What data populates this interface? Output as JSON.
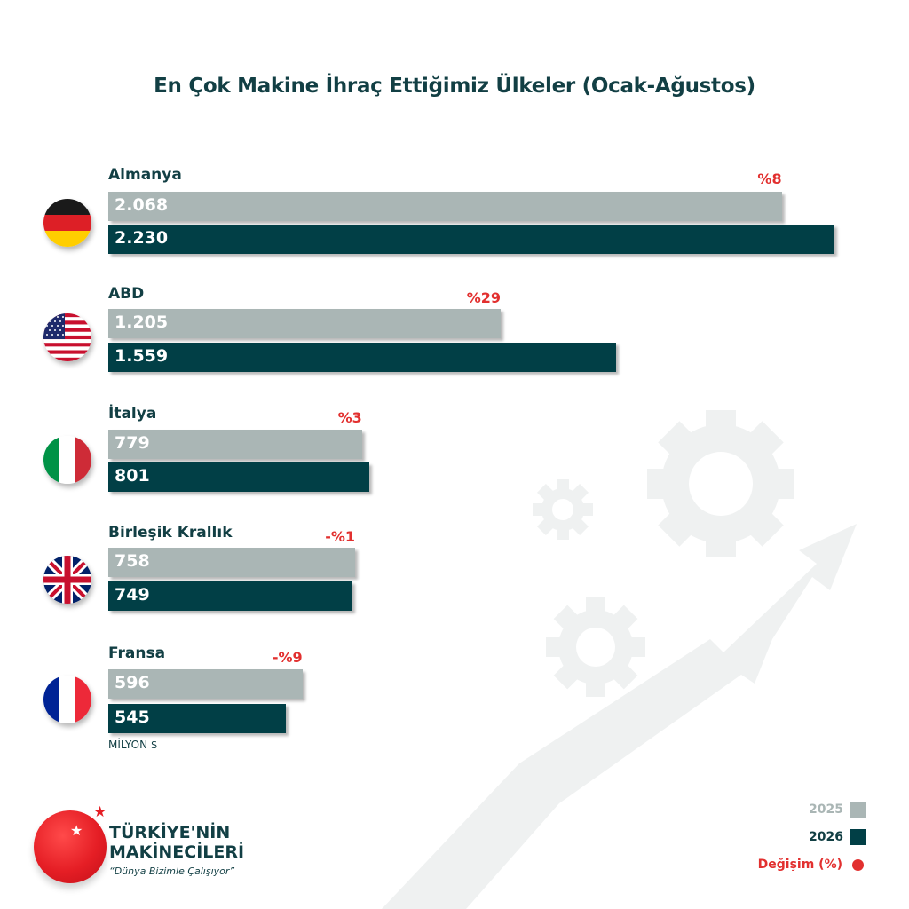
{
  "title": "En Çok Makine İhraç Ettiğimiz Ülkeler (Ocak-Ağustos)",
  "unit": "MİLYON $",
  "colors": {
    "year_2025": "#aab6b5",
    "year_2026": "#013f46",
    "change": "#e2302f",
    "text": "#123f44"
  },
  "chart_data": {
    "type": "bar",
    "orientation": "horizontal",
    "categories": [
      "Almanya",
      "ABD",
      "İtalya",
      "Birleşik Krallık",
      "Fransa"
    ],
    "series": [
      {
        "name": "2025",
        "values": [
          2068,
          1205,
          779,
          758,
          596
        ],
        "labels": [
          "2.068",
          "1.205",
          "779",
          "758",
          "596"
        ]
      },
      {
        "name": "2026",
        "values": [
          2230,
          1559,
          801,
          749,
          545
        ],
        "labels": [
          "2.230",
          "1.559",
          "801",
          "749",
          "545"
        ]
      }
    ],
    "change_labels": [
      "%8",
      "%29",
      "%3",
      "-%1",
      "-%9"
    ],
    "flags": [
      "germany-flag",
      "usa-flag",
      "italy-flag",
      "uk-flag",
      "france-flag"
    ],
    "xlim": [
      0,
      2230
    ],
    "grid": false,
    "legend_position": "bottom-right"
  },
  "legend": {
    "items": [
      {
        "label": "2025",
        "color": "#aab6b5"
      },
      {
        "label": "2026",
        "color": "#013f46"
      }
    ],
    "change_label": "Değişim (%)"
  },
  "logo": {
    "line1": "TÜRKİYE'NİN",
    "line2": "MAKİNECİLERİ",
    "tagline": "“Dünya Bizimle Çalışıyor”"
  }
}
